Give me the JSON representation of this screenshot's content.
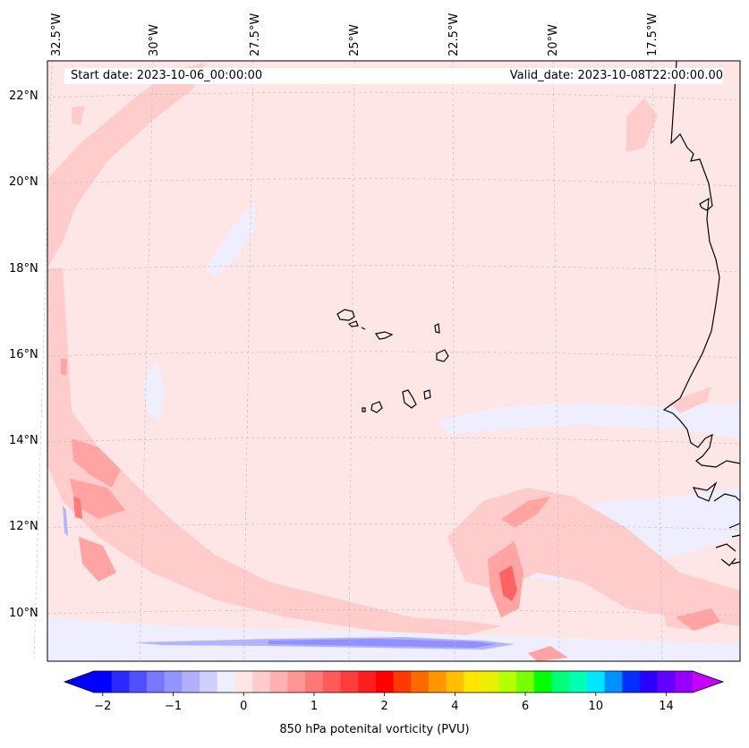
{
  "header": {
    "start_date": "Start date: 2023-10-06_00:00:00",
    "valid_date": "Valid_date: 2023-10-08T22:00:00.00"
  },
  "lon_labels": [
    "32.5°W",
    "30°W",
    "27.5°W",
    "25°W",
    "22.5°W",
    "20°W",
    "17.5°W"
  ],
  "lat_labels": [
    "22°N",
    "20°N",
    "18°N",
    "16°N",
    "14°N",
    "12°N",
    "10°N"
  ],
  "colorbar": {
    "title": "850 hPa potenital vorticity (PVU)",
    "tick_labels": [
      "−2",
      "−1",
      "0",
      "1",
      "2",
      "4",
      "6",
      "10",
      "14"
    ],
    "colors": [
      "#0000ff",
      "#2a2aff",
      "#5050ff",
      "#7878ff",
      "#9494ff",
      "#b0b0ff",
      "#d0d0ff",
      "#eeeeff",
      "#ffe6e6",
      "#ffcccc",
      "#ffb0b0",
      "#ff9494",
      "#ff7878",
      "#ff5a5a",
      "#ff3c3c",
      "#ff1e1e",
      "#ff0000",
      "#ff3a00",
      "#ff6a00",
      "#ff9600",
      "#ffbe00",
      "#ffe600",
      "#e6f000",
      "#b4ff00",
      "#78ff00",
      "#00ff00",
      "#00ff78",
      "#00ffb4",
      "#00e6ff",
      "#0090ff",
      "#0030ff",
      "#2a00ff",
      "#6400ff",
      "#9600ff"
    ],
    "under_color": "#0000ff",
    "over_color": "#c400ff"
  },
  "field": {
    "background": "#ffe6e6",
    "light_pink": "#ffcccc",
    "mid_pink": "#ffa3a3",
    "strong_red": "#ff6464",
    "pale_blue": "#eeeeff",
    "light_blue": "#b3b3ff",
    "mid_blue": "#9090ff"
  }
}
